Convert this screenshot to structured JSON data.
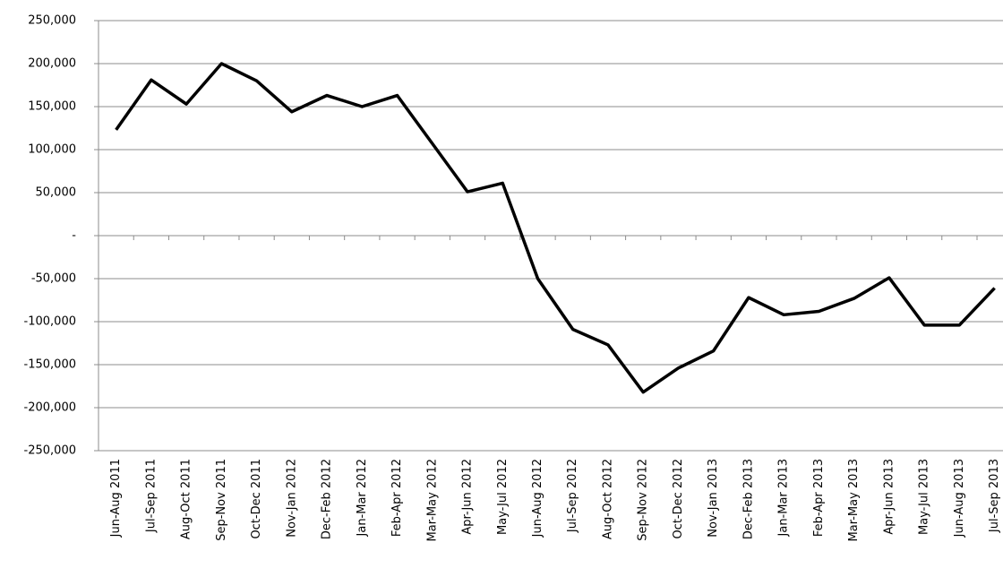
{
  "chart_data": {
    "type": "line",
    "categories": [
      "Jun-Aug 2011",
      "Jul-Sep 2011",
      "Aug-Oct 2011",
      "Sep-Nov 2011",
      "Oct-Dec 2011",
      "Nov-Jan 2012",
      "Dec-Feb 2012",
      "Jan-Mar 2012",
      "Feb-Apr 2012",
      "Mar-May 2012",
      "Apr-Jun 2012",
      "May-Jul 2012",
      "Jun-Aug 2012",
      "Jul-Sep 2012",
      "Aug-Oct 2012",
      "Sep-Nov 2012",
      "Oct-Dec 2012",
      "Nov-Jan 2013",
      "Dec-Feb 2013",
      "Jan-Mar 2013",
      "Feb-Apr 2013",
      "Mar-May 2013",
      "Apr-Jun 2013",
      "May-Jul 2013",
      "Jun-Aug 2013",
      "Jul-Sep 2013"
    ],
    "values": [
      123000,
      181000,
      153000,
      200000,
      180000,
      144000,
      163000,
      150000,
      163000,
      107000,
      51000,
      61000,
      -50000,
      -109000,
      -127000,
      -182000,
      -154000,
      -134000,
      -72000,
      -92000,
      -88000,
      -73000,
      -49000,
      -104000,
      -104000,
      -61000
    ],
    "color": "#000000",
    "ylim": [
      -250000,
      250000
    ],
    "yticks": [
      {
        "value": -250000,
        "label": "-250,000"
      },
      {
        "value": -200000,
        "label": "-200,000"
      },
      {
        "value": -150000,
        "label": "-150,000"
      },
      {
        "value": -100000,
        "label": "-100,000"
      },
      {
        "value": -50000,
        "label": "-50,000"
      },
      {
        "value": 0,
        "label": "-"
      },
      {
        "value": 50000,
        "label": "50,000"
      },
      {
        "value": 100000,
        "label": "100,000"
      },
      {
        "value": 150000,
        "label": "150,000"
      },
      {
        "value": 200000,
        "label": "200,000"
      },
      {
        "value": 250000,
        "label": "250,000"
      }
    ],
    "grid": true
  }
}
